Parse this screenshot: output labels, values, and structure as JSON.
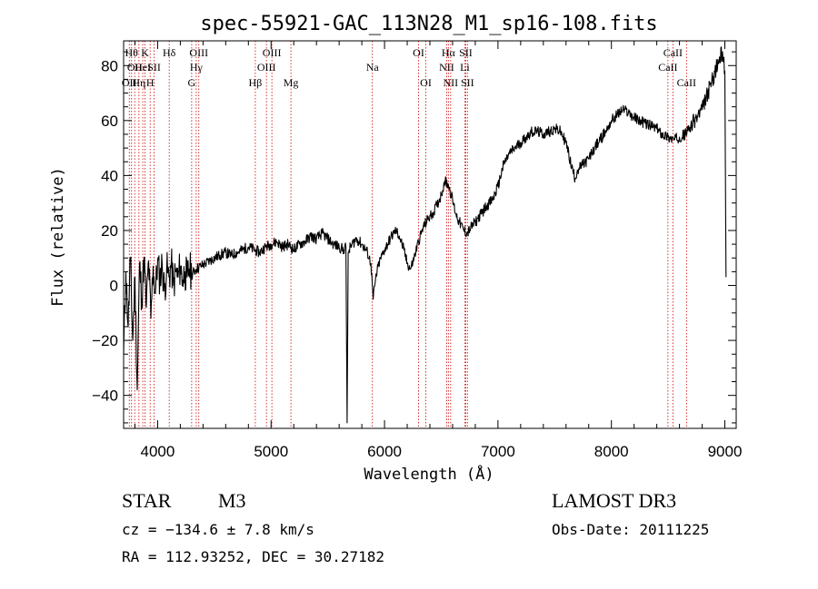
{
  "chart_data": {
    "type": "line",
    "title": "spec-55921-GAC_113N28_M1_sp16-108.fits",
    "xlabel": "Wavelength (Å)",
    "ylabel": "Flux (relative)",
    "xlim": [
      3700,
      9100
    ],
    "ylim": [
      -52,
      89
    ],
    "x_ticks": [
      4000,
      5000,
      6000,
      7000,
      8000,
      9000
    ],
    "y_ticks": [
      -40,
      -20,
      0,
      20,
      40,
      60,
      80
    ],
    "grid": false,
    "legend": "none",
    "line_color": "#000000",
    "marker_line_color": "#cc0000",
    "series": [
      {
        "values": [
          [
            3700,
            -25
          ],
          [
            3720,
            5
          ],
          [
            3740,
            -15
          ],
          [
            3760,
            10
          ],
          [
            3780,
            -20
          ],
          [
            3800,
            3
          ],
          [
            3820,
            -38
          ],
          [
            3840,
            8
          ],
          [
            3860,
            -5
          ],
          [
            3880,
            10
          ],
          [
            3900,
            -8
          ],
          [
            3920,
            9
          ],
          [
            3940,
            -12
          ],
          [
            3960,
            7
          ],
          [
            3980,
            -3
          ],
          [
            4000,
            9
          ],
          [
            4020,
            2
          ],
          [
            4040,
            8
          ],
          [
            4060,
            -2
          ],
          [
            4080,
            6
          ],
          [
            4100,
            3
          ],
          [
            4120,
            8
          ],
          [
            4140,
            0
          ],
          [
            4160,
            5
          ],
          [
            4180,
            3
          ],
          [
            4200,
            7
          ],
          [
            4220,
            2
          ],
          [
            4240,
            5
          ],
          [
            4260,
            3
          ],
          [
            4280,
            6
          ],
          [
            4300,
            4
          ],
          [
            4340,
            6
          ],
          [
            4380,
            7
          ],
          [
            4420,
            8
          ],
          [
            4460,
            9
          ],
          [
            4500,
            10
          ],
          [
            4550,
            11
          ],
          [
            4600,
            12
          ],
          [
            4650,
            11
          ],
          [
            4700,
            12
          ],
          [
            4750,
            13
          ],
          [
            4800,
            14
          ],
          [
            4850,
            13
          ],
          [
            4900,
            12
          ],
          [
            4950,
            14
          ],
          [
            5000,
            15
          ],
          [
            5050,
            16
          ],
          [
            5100,
            14
          ],
          [
            5150,
            15
          ],
          [
            5200,
            13
          ],
          [
            5250,
            15
          ],
          [
            5300,
            16
          ],
          [
            5350,
            18
          ],
          [
            5400,
            17
          ],
          [
            5450,
            19
          ],
          [
            5500,
            17
          ],
          [
            5550,
            15
          ],
          [
            5600,
            14
          ],
          [
            5640,
            13
          ],
          [
            5660,
            14
          ],
          [
            5670,
            -50
          ],
          [
            5680,
            12
          ],
          [
            5700,
            14
          ],
          [
            5750,
            17
          ],
          [
            5800,
            15
          ],
          [
            5850,
            12
          ],
          [
            5880,
            8
          ],
          [
            5900,
            -5
          ],
          [
            5920,
            2
          ],
          [
            5950,
            8
          ],
          [
            6000,
            13
          ],
          [
            6050,
            17
          ],
          [
            6080,
            19
          ],
          [
            6100,
            20
          ],
          [
            6130,
            18
          ],
          [
            6170,
            13
          ],
          [
            6200,
            8
          ],
          [
            6230,
            6
          ],
          [
            6260,
            10
          ],
          [
            6300,
            16
          ],
          [
            6340,
            21
          ],
          [
            6380,
            24
          ],
          [
            6420,
            26
          ],
          [
            6460,
            29
          ],
          [
            6500,
            33
          ],
          [
            6530,
            38
          ],
          [
            6560,
            37
          ],
          [
            6600,
            31
          ],
          [
            6630,
            26
          ],
          [
            6660,
            23
          ],
          [
            6700,
            20
          ],
          [
            6730,
            19
          ],
          [
            6760,
            21
          ],
          [
            6800,
            23
          ],
          [
            6850,
            26
          ],
          [
            6900,
            29
          ],
          [
            6950,
            31
          ],
          [
            7000,
            36
          ],
          [
            7050,
            44
          ],
          [
            7100,
            48
          ],
          [
            7150,
            50
          ],
          [
            7200,
            52
          ],
          [
            7250,
            54
          ],
          [
            7300,
            56
          ],
          [
            7350,
            56
          ],
          [
            7400,
            55
          ],
          [
            7450,
            56
          ],
          [
            7500,
            57
          ],
          [
            7550,
            56
          ],
          [
            7600,
            52
          ],
          [
            7650,
            43
          ],
          [
            7680,
            39
          ],
          [
            7700,
            42
          ],
          [
            7750,
            44
          ],
          [
            7800,
            46
          ],
          [
            7850,
            50
          ],
          [
            7900,
            53
          ],
          [
            7950,
            56
          ],
          [
            8000,
            60
          ],
          [
            8050,
            62
          ],
          [
            8100,
            64
          ],
          [
            8150,
            63
          ],
          [
            8200,
            61
          ],
          [
            8250,
            60
          ],
          [
            8300,
            59
          ],
          [
            8350,
            58
          ],
          [
            8400,
            57
          ],
          [
            8450,
            55
          ],
          [
            8500,
            54
          ],
          [
            8550,
            53
          ],
          [
            8600,
            54
          ],
          [
            8650,
            55
          ],
          [
            8700,
            58
          ],
          [
            8750,
            61
          ],
          [
            8800,
            64
          ],
          [
            8850,
            70
          ],
          [
            8900,
            76
          ],
          [
            8950,
            82
          ],
          [
            8980,
            85
          ],
          [
            9000,
            78
          ],
          [
            9010,
            3
          ]
        ]
      }
    ],
    "reference_lines": [
      {
        "x": 3750,
        "row": 3,
        "label": "OII"
      },
      {
        "x": 3770,
        "row": 1,
        "label": "Hθ"
      },
      {
        "x": 3798,
        "row": 2,
        "label": "OII"
      },
      {
        "x": 3835,
        "row": 3,
        "label": "Hη"
      },
      {
        "x": 3869,
        "row": 2,
        "label": "HeI"
      },
      {
        "x": 3889,
        "row": 1,
        "label": "K"
      },
      {
        "x": 3934,
        "row": 3,
        "label": "H"
      },
      {
        "x": 3969,
        "row": 2,
        "label": "SII"
      },
      {
        "x": 4102,
        "row": 1,
        "label": "Hδ"
      },
      {
        "x": 4300,
        "row": 3,
        "label": "G"
      },
      {
        "x": 4340,
        "row": 2,
        "label": "Hγ"
      },
      {
        "x": 4363,
        "row": 1,
        "label": "OIII"
      },
      {
        "x": 4861,
        "row": 3,
        "label": "Hβ"
      },
      {
        "x": 4959,
        "row": 2,
        "label": "OIII"
      },
      {
        "x": 5007,
        "row": 1,
        "label": "OIII"
      },
      {
        "x": 5175,
        "row": 3,
        "label": "Mg"
      },
      {
        "x": 5893,
        "row": 2,
        "label": "Na"
      },
      {
        "x": 6300,
        "row": 1,
        "label": "OI"
      },
      {
        "x": 6364,
        "row": 3,
        "label": "OI"
      },
      {
        "x": 6548,
        "row": 2,
        "label": "NII"
      },
      {
        "x": 6563,
        "row": 1,
        "label": "Hα"
      },
      {
        "x": 6583,
        "row": 3,
        "label": "NII"
      },
      {
        "x": 6708,
        "row": 2,
        "label": "Li"
      },
      {
        "x": 6716,
        "row": 1,
        "label": "SII"
      },
      {
        "x": 6731,
        "row": 3,
        "label": "SII"
      },
      {
        "x": 8498,
        "row": 2,
        "label": "CaII"
      },
      {
        "x": 8542,
        "row": 1,
        "label": "CaII"
      },
      {
        "x": 8662,
        "row": 3,
        "label": "CaII"
      }
    ]
  },
  "info": {
    "object_class": "STAR",
    "subclass": "M3",
    "survey": "LAMOST DR3",
    "redshift": "cz = −134.6 ± 7.8 km/s",
    "obs_date": "Obs-Date: 20111225",
    "coords": "RA = 112.93252, DEC =  30.27182"
  }
}
